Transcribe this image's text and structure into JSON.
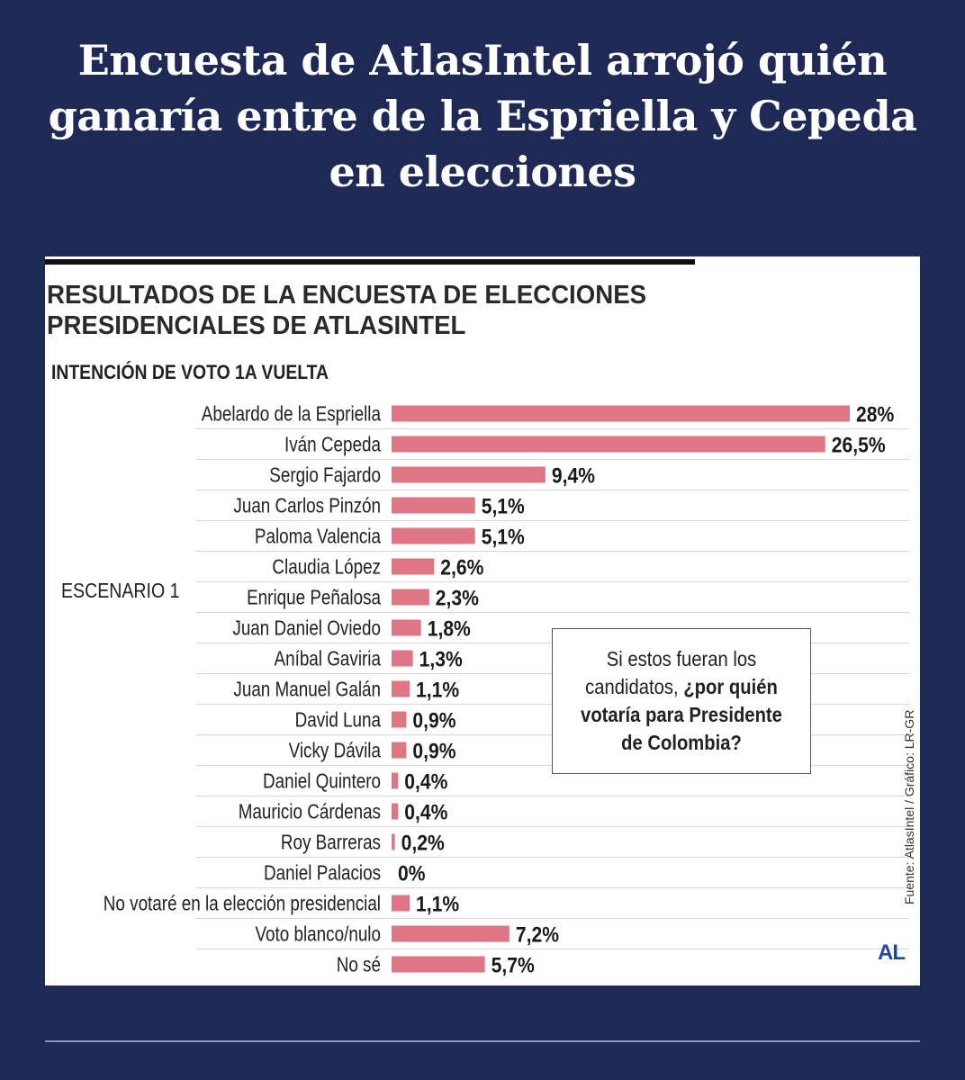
{
  "headline": "Encuesta de AtlasIntel arrojó quién ganaría entre de la Espriella y Cepeda en elecciones",
  "card": {
    "title_line1": "RESULTADOS DE LA ENCUESTA DE ELECCIONES",
    "title_line2": "PRESIDENCIALES DE ATLASINTEL",
    "subtitle": "INTENCIÓN DE VOTO 1A VUELTA",
    "scenario": "ESCENARIO 1",
    "callout_part1": "Si estos fueran los candidatos, ",
    "callout_part2": "¿por quién votaría para Presidente de Colombia?",
    "source": "Fuente: AtlasIntel / Gráfico: LR-GR",
    "logo": "AL"
  },
  "colors": {
    "background": "#1e2a55",
    "bar": "#e07585",
    "text": "#222222"
  },
  "chart_data": {
    "type": "bar",
    "orientation": "horizontal",
    "title": "RESULTADOS DE LA ENCUESTA DE ELECCIONES PRESIDENCIALES DE ATLASINTEL",
    "subtitle": "INTENCIÓN DE VOTO 1A VUELTA",
    "group": "ESCENARIO 1",
    "categories": [
      "Abelardo de la Espriella",
      "Iván Cepeda",
      "Sergio Fajardo",
      "Juan Carlos Pinzón",
      "Paloma Valencia",
      "Claudia López",
      "Enrique Peñalosa",
      "Juan Daniel Oviedo",
      "Aníbal Gaviria",
      "Juan Manuel Galán",
      "David Luna",
      "Vicky Dávila",
      "Daniel Quintero",
      "Mauricio Cárdenas",
      "Roy Barreras",
      "Daniel Palacios",
      "No votaré en la elección presidencial",
      "Voto blanco/nulo",
      "No sé"
    ],
    "values": [
      28,
      26.5,
      9.4,
      5.1,
      5.1,
      2.6,
      2.3,
      1.8,
      1.3,
      1.1,
      0.9,
      0.9,
      0.4,
      0.4,
      0.2,
      0,
      1.1,
      7.2,
      5.7
    ],
    "value_labels": [
      "28%",
      "26,5%",
      "9,4%",
      "5,1%",
      "5,1%",
      "2,6%",
      "2,3%",
      "1,8%",
      "1,3%",
      "1,1%",
      "0,9%",
      "0,9%",
      "0,4%",
      "0,4%",
      "0,2%",
      "0%",
      "1,1%",
      "7,2%",
      "5,7%"
    ],
    "xlim": [
      0,
      28
    ],
    "grid": "horizontal row separators",
    "legend": "none"
  }
}
